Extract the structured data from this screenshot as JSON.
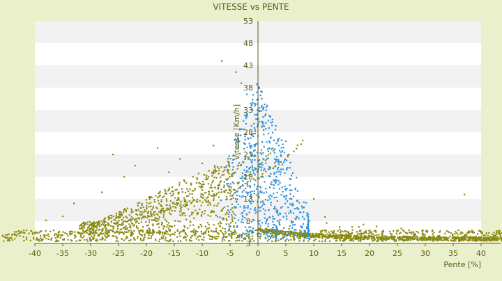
{
  "chart_data": {
    "type": "scatter",
    "title": "VITESSE vs PENTE",
    "xlabel": "Pente [%]",
    "ylabel": "Vitesse [Km/h]",
    "xlim": [
      -40,
      40
    ],
    "ylim": [
      3,
      53
    ],
    "x_ticks": [
      "-40",
      "-35",
      "-30",
      "-25",
      "-20",
      "-15",
      "-10",
      "-5",
      "0",
      "5",
      "10",
      "15",
      "20",
      "25",
      "30",
      "35",
      "40"
    ],
    "y_ticks": [
      "3",
      "8",
      "13",
      "18",
      "23",
      "28",
      "33",
      "38",
      "43",
      "48",
      "53"
    ],
    "grid": "horizontal alternating bands",
    "colors": {
      "background": "#eaf0cc",
      "plot_band_light": "#ffffff",
      "plot_band_dark": "#f2f2f2",
      "axis": "#5a5a14",
      "text": "#5a5a14",
      "series_olive": "#8a8a10",
      "series_blue": "#2e8fd8"
    },
    "series": [
      {
        "key": "olive",
        "summary": {
          "clusters": [
            {
              "x_range": [
                -42,
                42
              ],
              "y_range": [
                3,
                6
              ],
              "density": "very high"
            },
            {
              "x_range": [
                -30,
                -5
              ],
              "y_range": [
                6,
                25
              ],
              "density": "high"
            },
            {
              "x_range": [
                0,
                40
              ],
              "decay_from": 6,
              "decay_to": 4,
              "density": "very high"
            }
          ],
          "sample_points": [
            [
              -40,
              5.5
            ],
            [
              -38,
              8.2
            ],
            [
              -35,
              9.1
            ],
            [
              -33,
              12.0
            ],
            [
              -30,
              7.4
            ],
            [
              -28,
              14.5
            ],
            [
              -26,
              23.0
            ],
            [
              -24,
              18.0
            ],
            [
              -22,
              20.5
            ],
            [
              -20,
              11.0
            ],
            [
              -18,
              24.5
            ],
            [
              -16,
              19.0
            ],
            [
              -14,
              22.0
            ],
            [
              -12,
              16.5
            ],
            [
              -10,
              21.0
            ],
            [
              -8,
              25.0
            ],
            [
              -6,
              19.5
            ],
            [
              -4,
              13.0
            ],
            [
              -2,
              9.5
            ],
            [
              3,
              6.0
            ],
            [
              5,
              26.0
            ],
            [
              8,
              5.0
            ],
            [
              10,
              13.0
            ],
            [
              12,
              9.0
            ],
            [
              15,
              5.0
            ],
            [
              20,
              4.5
            ],
            [
              25,
              4.3
            ],
            [
              30,
              4.2
            ],
            [
              35,
              4.1
            ],
            [
              40,
              4.0
            ],
            [
              37,
              14.0
            ]
          ]
        }
      },
      {
        "key": "blue",
        "summary": {
          "center_x": 0,
          "x_range": [
            -8,
            9
          ],
          "y_range": [
            4,
            44
          ],
          "sample_points": [
            [
              -6.5,
              44.0
            ],
            [
              -4,
              41.5
            ],
            [
              -3,
              39.0
            ],
            [
              -2,
              36.5
            ],
            [
              -1,
              33.0
            ],
            [
              0,
              31.0
            ],
            [
              1,
              28.5
            ],
            [
              2,
              26.0
            ],
            [
              3,
              22.0
            ],
            [
              4,
              18.5
            ],
            [
              5,
              15.0
            ],
            [
              6,
              13.0
            ],
            [
              7,
              11.0
            ],
            [
              8,
              9.0
            ],
            [
              -1,
              20.0
            ],
            [
              1,
              12.0
            ],
            [
              0,
              8.0
            ],
            [
              2,
              6.0
            ]
          ]
        }
      }
    ]
  }
}
